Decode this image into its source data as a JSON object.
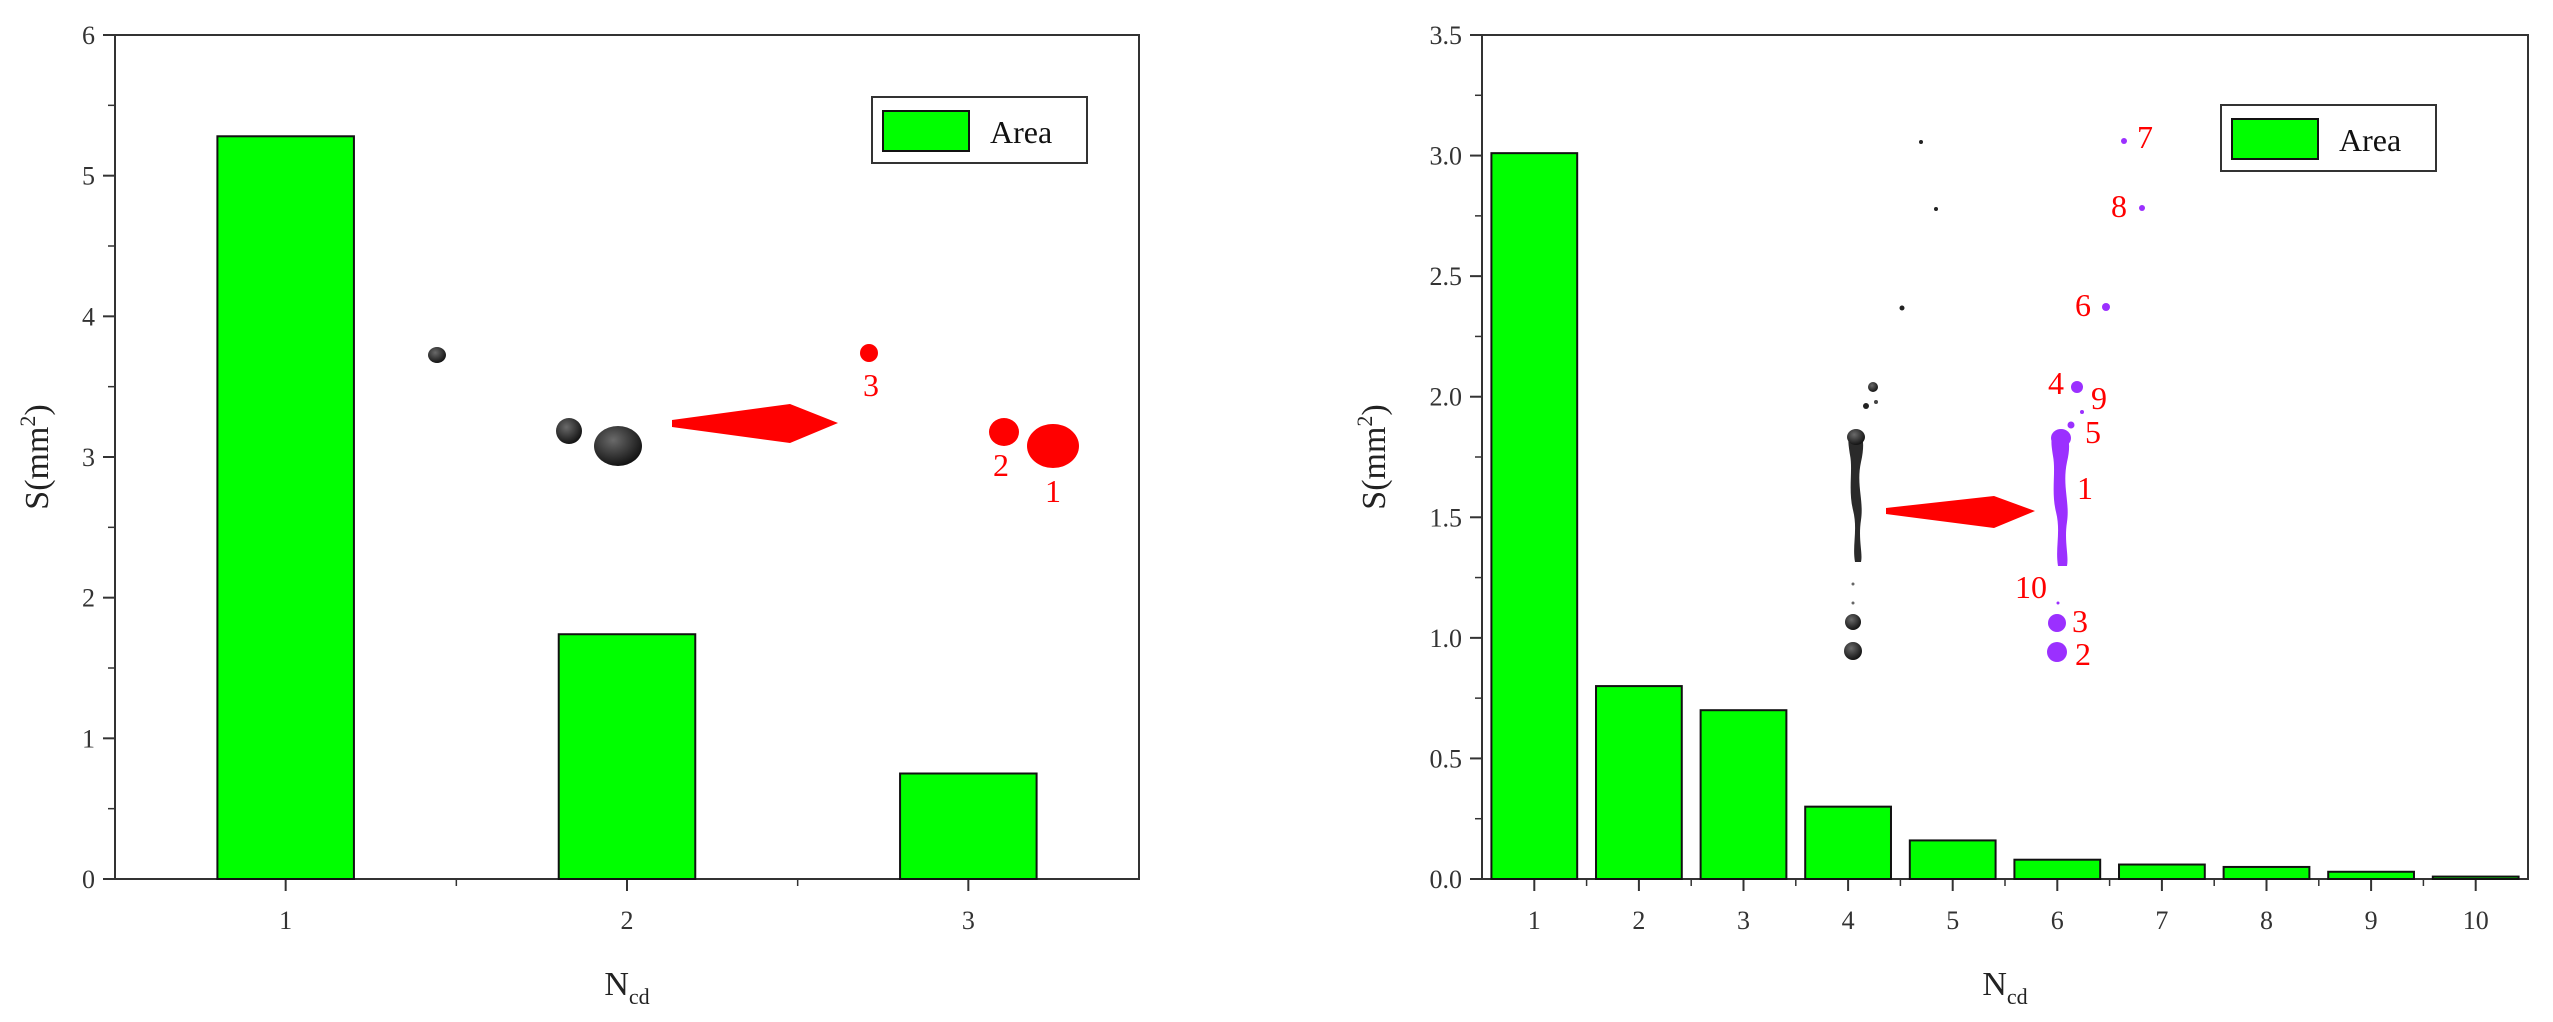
{
  "chart_data": [
    {
      "type": "bar",
      "categories": [
        "1",
        "2",
        "3"
      ],
      "values": [
        5.28,
        1.74,
        0.75
      ],
      "ylim": [
        0,
        6
      ],
      "yticks": [
        "0",
        "1",
        "2",
        "3",
        "4",
        "5",
        "6"
      ],
      "xlabel_main": "N",
      "xlabel_sub": "cd",
      "ylabel_main": "S(mm",
      "ylabel_sup": "2",
      "ylabel_end": ")",
      "legend": {
        "label": "Area",
        "position": "top-right"
      },
      "bar_color": "#00ff00",
      "inset_labels": [
        "1",
        "2",
        "3"
      ]
    },
    {
      "type": "bar",
      "categories": [
        "1",
        "2",
        "3",
        "4",
        "5",
        "6",
        "7",
        "8",
        "9",
        "10"
      ],
      "values": [
        3.01,
        0.8,
        0.7,
        0.3,
        0.16,
        0.08,
        0.06,
        0.05,
        0.03,
        0.01
      ],
      "ylim": [
        0,
        3.5
      ],
      "yticks": [
        "0.0",
        "0.5",
        "1.0",
        "1.5",
        "2.0",
        "2.5",
        "3.0",
        "3.5"
      ],
      "xlabel_main": "N",
      "xlabel_sub": "cd",
      "ylabel_main": "S(mm",
      "ylabel_sup": "2",
      "ylabel_end": ")",
      "legend": {
        "label": "Area",
        "position": "top-right"
      },
      "bar_color": "#00ff00",
      "inset_labels": [
        "7",
        "8",
        "6",
        "4",
        "9",
        "5",
        "1",
        "10",
        "3",
        "2"
      ]
    }
  ],
  "colors": {
    "bar": "#00ff00",
    "arrow": "#ff0000",
    "droplet_original": "#1a1a1a",
    "droplet_left_marked": "#ff0000",
    "droplet_right_marked": "#9b30ff"
  }
}
